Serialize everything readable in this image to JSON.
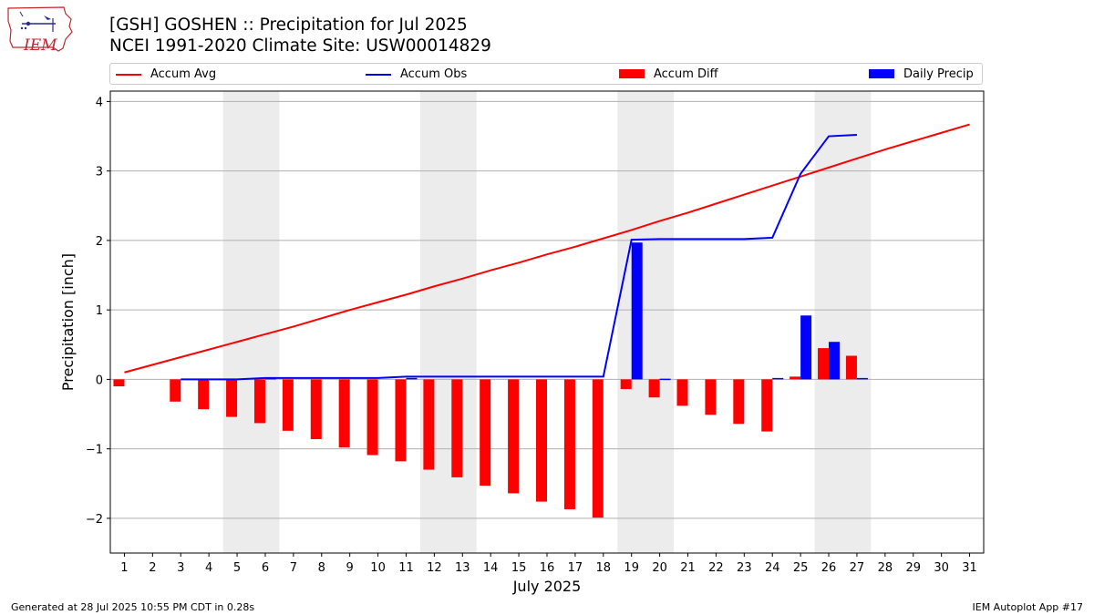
{
  "header": {
    "title_line1": "[GSH] GOSHEN :: Precipitation for Jul 2025",
    "title_line2": "NCEI 1991-2020 Climate Site: USW00014829",
    "logo_text": "IEM"
  },
  "footer": {
    "left": "Generated at 28 Jul 2025 10:55 PM CDT in 0.28s",
    "right": "IEM Autoplot App #17"
  },
  "colors": {
    "accum_avg": "#ff0000",
    "accum_obs": "#0000ff",
    "accum_diff": "#ff0000",
    "daily_precip": "#0000ff",
    "weekend_shade": "#ececec",
    "grid": "#b0b0b0"
  },
  "legend": {
    "items": [
      {
        "label": "Accum Avg",
        "kind": "line",
        "color": "#ff0000"
      },
      {
        "label": "Accum Obs",
        "kind": "line",
        "color": "#0000ff"
      },
      {
        "label": "Accum Diff",
        "kind": "box",
        "color": "#ff0000"
      },
      {
        "label": "Daily Precip",
        "kind": "box",
        "color": "#0000ff"
      }
    ],
    "placement": "top, full width"
  },
  "chart_data": {
    "type": "bar",
    "xlabel": "July 2025",
    "ylabel": "Precipitation [inch]",
    "xlim": [
      0.5,
      31.5
    ],
    "ylim": [
      -2.5,
      4.15
    ],
    "yticks": [
      4,
      3,
      2,
      1,
      0,
      -1,
      -2
    ],
    "ytick_labels": [
      "4",
      "3",
      "2",
      "1",
      "0",
      "−1",
      "−2"
    ],
    "x": [
      1,
      2,
      3,
      4,
      5,
      6,
      7,
      8,
      9,
      10,
      11,
      12,
      13,
      14,
      15,
      16,
      17,
      18,
      19,
      20,
      21,
      22,
      23,
      24,
      25,
      26,
      27,
      28,
      29,
      30,
      31
    ],
    "weekend_bands": [
      [
        4.5,
        6.5
      ],
      [
        11.5,
        13.5
      ],
      [
        18.5,
        20.5
      ],
      [
        25.5,
        27.5
      ]
    ],
    "grid": "horizontal",
    "series": [
      {
        "name": "Accum Avg",
        "type": "line",
        "x": [
          1,
          2,
          3,
          4,
          5,
          6,
          7,
          8,
          9,
          10,
          11,
          12,
          13,
          14,
          15,
          16,
          17,
          18,
          19,
          20,
          21,
          22,
          23,
          24,
          25,
          26,
          27,
          28,
          29,
          30,
          31
        ],
        "values": [
          0.1,
          0.21,
          0.32,
          0.43,
          0.54,
          0.65,
          0.76,
          0.88,
          1.0,
          1.11,
          1.22,
          1.34,
          1.45,
          1.57,
          1.68,
          1.8,
          1.91,
          2.03,
          2.15,
          2.28,
          2.4,
          2.53,
          2.66,
          2.79,
          2.92,
          3.05,
          3.18,
          3.31,
          3.43,
          3.55,
          3.67
        ]
      },
      {
        "name": "Accum Obs",
        "type": "line",
        "x": [
          3,
          4,
          5,
          6,
          7,
          8,
          9,
          10,
          11,
          12,
          13,
          14,
          15,
          16,
          17,
          18,
          19,
          20,
          21,
          22,
          23,
          24,
          25,
          26,
          27
        ],
        "values": [
          0.0,
          0.0,
          0.0,
          0.02,
          0.02,
          0.02,
          0.02,
          0.02,
          0.04,
          0.04,
          0.04,
          0.04,
          0.04,
          0.04,
          0.04,
          0.04,
          2.01,
          2.02,
          2.02,
          2.02,
          2.02,
          2.04,
          2.96,
          3.5,
          3.52
        ]
      },
      {
        "name": "Accum Diff",
        "type": "bar",
        "x": [
          1,
          3,
          4,
          5,
          6,
          7,
          8,
          9,
          10,
          11,
          12,
          13,
          14,
          15,
          16,
          17,
          18,
          19,
          20,
          21,
          22,
          23,
          24,
          25,
          26,
          27
        ],
        "values": [
          -0.1,
          -0.32,
          -0.43,
          -0.54,
          -0.63,
          -0.74,
          -0.86,
          -0.98,
          -1.09,
          -1.18,
          -1.3,
          -1.41,
          -1.53,
          -1.64,
          -1.76,
          -1.87,
          -1.99,
          -0.14,
          -0.26,
          -0.38,
          -0.51,
          -0.64,
          -0.75,
          0.04,
          0.45,
          0.34
        ]
      },
      {
        "name": "Daily Precip",
        "type": "bar",
        "x": [
          6,
          11,
          19,
          20,
          24,
          25,
          26,
          27
        ],
        "values": [
          0.02,
          0.02,
          1.97,
          0.01,
          0.02,
          0.92,
          0.54,
          0.02
        ]
      }
    ]
  }
}
